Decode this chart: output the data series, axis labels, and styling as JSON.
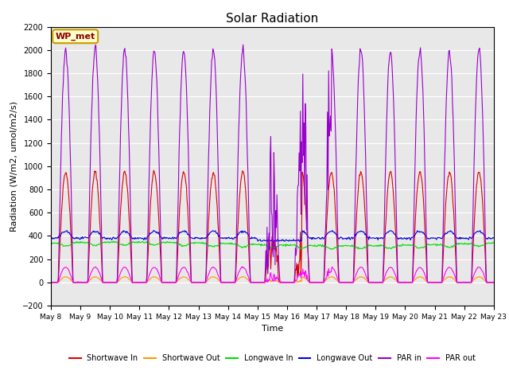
{
  "title": "Solar Radiation",
  "xlabel": "Time",
  "ylabel": "Radiation (W/m2, umol/m2/s)",
  "ylim": [
    -200,
    2200
  ],
  "yticks": [
    -200,
    0,
    200,
    400,
    600,
    800,
    1000,
    1200,
    1400,
    1600,
    1800,
    2000,
    2200
  ],
  "background_color": "#e8e8e8",
  "legend_label": "WP_met",
  "series_colors": {
    "Shortwave In": "#dd0000",
    "Shortwave Out": "#ff9900",
    "Longwave In": "#00dd00",
    "Longwave Out": "#0000dd",
    "PAR in": "#9900cc",
    "PAR out": "#ff00ff"
  },
  "n_days": 15,
  "day_start": 8,
  "day_end": 23,
  "figsize": [
    6.4,
    4.8
  ],
  "dpi": 100
}
